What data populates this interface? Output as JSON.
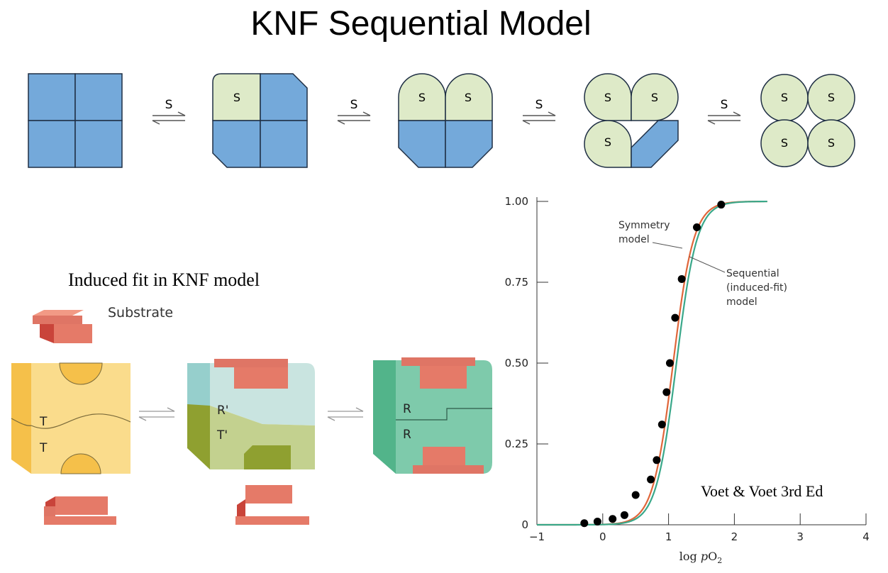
{
  "title": "KNF Sequential Model",
  "sequence": {
    "arrow_label": "S",
    "site_label": "S"
  },
  "induced_fit": {
    "heading": "Induced fit in KNF model",
    "substrate_label": "Substrate",
    "labels": {
      "T": "T",
      "R_prime": "R'",
      "T_prime": "T'",
      "R": "R"
    }
  },
  "credit": "Voet & Voet 3rd Ed",
  "colors": {
    "blue_subunit": "#74a9da",
    "bound_subunit": "#deeac8",
    "substrate": "#df7565",
    "T_state": "#fadc8c",
    "R_state": "#7ecaab"
  },
  "chart_data": {
    "type": "line",
    "xlabel": "log pO2",
    "x_ticks": [
      "−1",
      "0",
      "1",
      "2",
      "3",
      "4"
    ],
    "y_ticks": [
      "0",
      "0.25",
      "0.50",
      "0.75",
      "1.00"
    ],
    "xlim": [
      -1,
      4
    ],
    "ylim": [
      0,
      1
    ],
    "annotations": {
      "symmetry": [
        "Symmetry",
        "model"
      ],
      "sequential": [
        "Sequential",
        "(induced-fit)",
        "model"
      ]
    },
    "series": [
      {
        "name": "Symmetry model",
        "color": "#e0663a",
        "kind": "curve",
        "x50": 1.07,
        "n": 2.8
      },
      {
        "name": "Sequential (induced-fit) model",
        "color": "#3aa88a",
        "kind": "curve",
        "x50": 1.12,
        "n": 2.8
      },
      {
        "kind": "points",
        "x": [
          -0.28,
          -0.08,
          0.15,
          0.33,
          0.5,
          0.73,
          0.82,
          0.9,
          0.97,
          1.02,
          1.1,
          1.2,
          1.43,
          1.8
        ],
        "y": [
          0.005,
          0.01,
          0.018,
          0.03,
          0.092,
          0.14,
          0.2,
          0.31,
          0.41,
          0.5,
          0.64,
          0.76,
          0.92,
          0.99
        ]
      }
    ]
  }
}
